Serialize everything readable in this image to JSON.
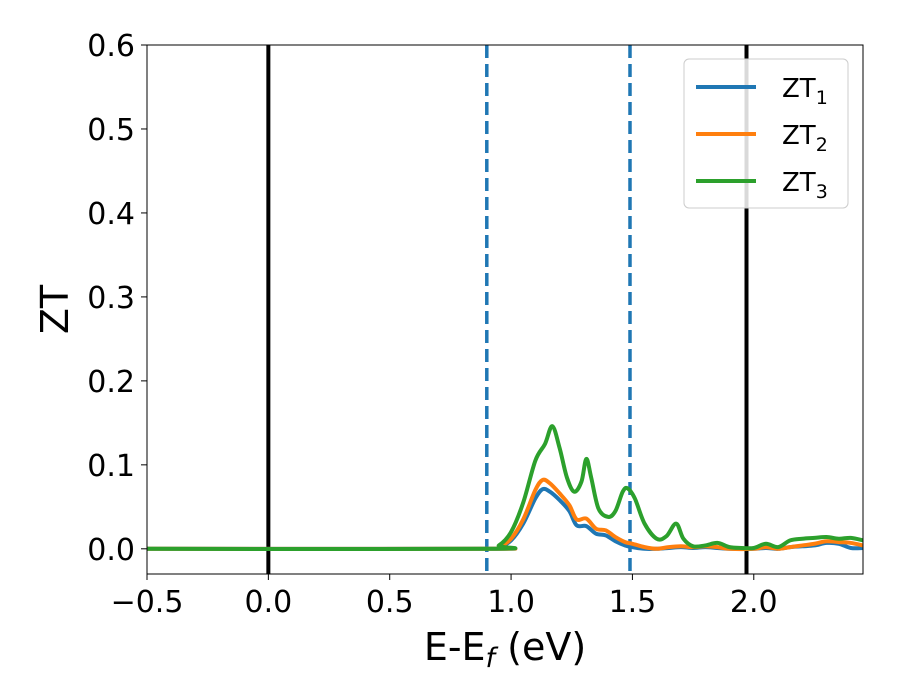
{
  "chart_data": {
    "type": "line",
    "xlabel": "E-E_f (eV)",
    "ylabel": "ZT",
    "xlim": [
      -0.5,
      2.45
    ],
    "ylim": [
      -0.03,
      0.6
    ],
    "x_ticks": [
      -0.5,
      0.0,
      0.5,
      1.0,
      1.5,
      2.0
    ],
    "x_tick_labels": [
      "−0.5",
      "0.0",
      "0.5",
      "1.0",
      "1.5",
      "2.0"
    ],
    "y_ticks": [
      0.0,
      0.1,
      0.2,
      0.3,
      0.4,
      0.5,
      0.6
    ],
    "y_tick_labels": [
      "0.0",
      "0.1",
      "0.2",
      "0.3",
      "0.4",
      "0.5",
      "0.6"
    ],
    "legend_position": "top-right",
    "grid": false,
    "vertical_lines": [
      {
        "x": 0.0,
        "style": "solid",
        "color": "#000000"
      },
      {
        "x": 1.97,
        "style": "solid",
        "color": "#000000"
      },
      {
        "x": 0.9,
        "style": "dashed",
        "color": "#1f77b4"
      },
      {
        "x": 1.49,
        "style": "dashed",
        "color": "#1f77b4"
      }
    ],
    "series": [
      {
        "name": "ZT_1",
        "legend_main": "ZT",
        "legend_sub": "1",
        "color": "#1f77b4",
        "points": [
          [
            -0.5,
            0.0
          ],
          [
            0.9,
            0.0
          ],
          [
            0.95,
            0.002
          ],
          [
            1.0,
            0.01
          ],
          [
            1.05,
            0.03
          ],
          [
            1.1,
            0.06
          ],
          [
            1.13,
            0.071
          ],
          [
            1.16,
            0.068
          ],
          [
            1.2,
            0.058
          ],
          [
            1.24,
            0.045
          ],
          [
            1.27,
            0.028
          ],
          [
            1.31,
            0.027
          ],
          [
            1.35,
            0.018
          ],
          [
            1.39,
            0.016
          ],
          [
            1.43,
            0.009
          ],
          [
            1.47,
            0.004
          ],
          [
            1.5,
            0.002
          ],
          [
            1.55,
            0.0
          ],
          [
            1.6,
            0.0
          ],
          [
            1.65,
            0.001
          ],
          [
            1.7,
            0.002
          ],
          [
            1.75,
            0.001
          ],
          [
            1.8,
            0.002
          ],
          [
            1.85,
            0.001
          ],
          [
            1.9,
            0.0
          ],
          [
            2.0,
            0.0
          ],
          [
            2.05,
            0.001
          ],
          [
            2.1,
            0.0
          ],
          [
            2.15,
            0.002
          ],
          [
            2.2,
            0.003
          ],
          [
            2.25,
            0.004
          ],
          [
            2.3,
            0.007
          ],
          [
            2.35,
            0.006
          ],
          [
            2.4,
            0.001
          ],
          [
            2.45,
            0.001
          ]
        ]
      },
      {
        "name": "ZT_2",
        "legend_main": "ZT",
        "legend_sub": "2",
        "color": "#ff7f0e",
        "points": [
          [
            -0.5,
            0.0
          ],
          [
            0.9,
            0.0
          ],
          [
            0.95,
            0.002
          ],
          [
            1.0,
            0.012
          ],
          [
            1.05,
            0.035
          ],
          [
            1.1,
            0.07
          ],
          [
            1.13,
            0.082
          ],
          [
            1.16,
            0.078
          ],
          [
            1.2,
            0.066
          ],
          [
            1.24,
            0.052
          ],
          [
            1.27,
            0.035
          ],
          [
            1.31,
            0.036
          ],
          [
            1.35,
            0.024
          ],
          [
            1.39,
            0.022
          ],
          [
            1.43,
            0.014
          ],
          [
            1.47,
            0.008
          ],
          [
            1.5,
            0.006
          ],
          [
            1.55,
            0.002
          ],
          [
            1.6,
            0.0
          ],
          [
            1.65,
            0.002
          ],
          [
            1.7,
            0.003
          ],
          [
            1.75,
            0.002
          ],
          [
            1.8,
            0.003
          ],
          [
            1.85,
            0.002
          ],
          [
            1.9,
            0.0
          ],
          [
            2.0,
            0.0
          ],
          [
            2.05,
            0.002
          ],
          [
            2.1,
            0.0
          ],
          [
            2.15,
            0.002
          ],
          [
            2.2,
            0.004
          ],
          [
            2.25,
            0.006
          ],
          [
            2.3,
            0.009
          ],
          [
            2.35,
            0.008
          ],
          [
            2.4,
            0.007
          ],
          [
            2.45,
            0.004
          ]
        ]
      },
      {
        "name": "ZT_3",
        "legend_main": "ZT",
        "legend_sub": "3",
        "color": "#2ca02c",
        "points": [
          [
            -0.5,
            0.0
          ],
          [
            0.9,
            0.0
          ],
          [
            0.95,
            0.004
          ],
          [
            1.0,
            0.02
          ],
          [
            1.05,
            0.055
          ],
          [
            1.1,
            0.105
          ],
          [
            1.14,
            0.125
          ],
          [
            1.17,
            0.146
          ],
          [
            1.2,
            0.12
          ],
          [
            1.23,
            0.085
          ],
          [
            1.26,
            0.068
          ],
          [
            1.29,
            0.08
          ],
          [
            1.31,
            0.107
          ],
          [
            1.33,
            0.085
          ],
          [
            1.36,
            0.048
          ],
          [
            1.4,
            0.038
          ],
          [
            1.43,
            0.045
          ],
          [
            1.46,
            0.068
          ],
          [
            1.48,
            0.072
          ],
          [
            1.51,
            0.06
          ],
          [
            1.55,
            0.03
          ],
          [
            1.6,
            0.012
          ],
          [
            1.64,
            0.015
          ],
          [
            1.68,
            0.03
          ],
          [
            1.71,
            0.012
          ],
          [
            1.75,
            0.003
          ],
          [
            1.8,
            0.004
          ],
          [
            1.85,
            0.007
          ],
          [
            1.9,
            0.002
          ],
          [
            1.95,
            0.001
          ],
          [
            2.0,
            0.001
          ],
          [
            2.05,
            0.006
          ],
          [
            2.1,
            0.002
          ],
          [
            2.15,
            0.01
          ],
          [
            2.2,
            0.012
          ],
          [
            2.25,
            0.013
          ],
          [
            2.3,
            0.014
          ],
          [
            2.35,
            0.012
          ],
          [
            2.4,
            0.013
          ],
          [
            2.45,
            0.01
          ]
        ]
      }
    ]
  }
}
